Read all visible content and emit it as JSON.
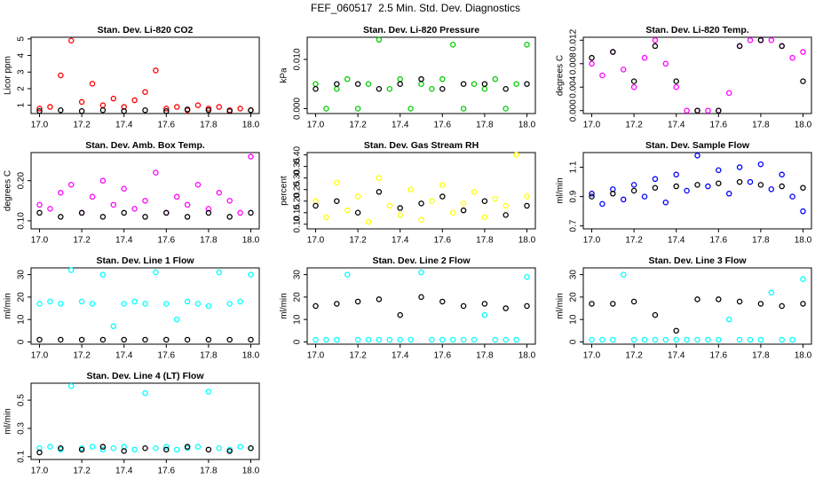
{
  "title": "FEF_060517  2.5 Min. Std. Dev. Diagnostics",
  "chart_data": [
    {
      "type": "scatter",
      "title": "Stan. Dev. Li-820 CO2",
      "y_label": "Licor ppm",
      "xlim": [
        16.96,
        18.04
      ],
      "ylim": [
        0.5,
        5.1
      ],
      "xticks": [
        {
          "value": 17,
          "label": "17.0"
        },
        17.2,
        17.4,
        17.6,
        17.8,
        {
          "value": 18,
          "label": "18.0"
        }
      ],
      "yticks": [
        1,
        2,
        3,
        4,
        5
      ],
      "series": [
        {
          "color": "#ff0000",
          "x": [
            17.0,
            17.05,
            17.1,
            17.15,
            17.2,
            17.25,
            17.3,
            17.35,
            17.4,
            17.45,
            17.5,
            17.55,
            17.6,
            17.65,
            17.7,
            17.75,
            17.8,
            17.85,
            17.9,
            17.95,
            18.0
          ],
          "values": [
            0.8,
            0.9,
            2.8,
            4.9,
            1.2,
            2.3,
            1.0,
            1.4,
            0.9,
            1.3,
            1.8,
            3.1,
            0.8,
            0.9,
            0.7,
            1.0,
            0.8,
            0.9,
            0.7,
            0.8,
            0.7
          ]
        },
        {
          "color": "#000000",
          "x": [
            17.0,
            17.1,
            17.2,
            17.3,
            17.4,
            17.5,
            17.6,
            17.7,
            17.8,
            17.9,
            18.0
          ],
          "values": [
            0.65,
            0.7,
            0.65,
            0.7,
            0.65,
            0.7,
            0.65,
            0.75,
            0.7,
            0.65,
            0.7
          ]
        }
      ]
    },
    {
      "type": "scatter",
      "title": "Stan. Dev. Li-820 Pressure",
      "y_label": "kPa",
      "xlim": [
        16.96,
        18.04
      ],
      "ylim": [
        -0.001,
        0.0145
      ],
      "xticks": [
        {
          "value": 17,
          "label": "17.0"
        },
        17.2,
        17.4,
        17.6,
        17.8,
        {
          "value": 18,
          "label": "18.0"
        }
      ],
      "yticks": [
        {
          "value": 0,
          "label": "0.000"
        },
        {
          "value": 0.01,
          "label": "0.010"
        }
      ],
      "series": [
        {
          "color": "#00cc00",
          "x": [
            17.0,
            17.05,
            17.1,
            17.15,
            17.2,
            17.25,
            17.3,
            17.35,
            17.4,
            17.45,
            17.5,
            17.55,
            17.6,
            17.65,
            17.7,
            17.75,
            17.8,
            17.85,
            17.9,
            17.95,
            18.0
          ],
          "values": [
            0.005,
            0.0,
            0.004,
            0.006,
            0.0,
            0.005,
            0.014,
            0.004,
            0.006,
            0.0,
            0.005,
            0.004,
            0.006,
            0.013,
            0.0,
            0.005,
            0.004,
            0.006,
            0.0,
            0.005,
            0.013
          ]
        },
        {
          "color": "#000000",
          "x": [
            17.0,
            17.1,
            17.2,
            17.3,
            17.4,
            17.5,
            17.6,
            17.7,
            17.8,
            17.9,
            18.0
          ],
          "values": [
            0.004,
            0.005,
            0.005,
            0.004,
            0.005,
            0.006,
            0.004,
            0.005,
            0.005,
            0.004,
            0.005
          ]
        }
      ]
    },
    {
      "type": "scatter",
      "title": "Stan. Dev. Li-820 Temp.",
      "y_label": "degrees C",
      "xlim": [
        16.96,
        18.04
      ],
      "ylim": [
        -0.0005,
        0.0125
      ],
      "xticks": [
        {
          "value": 17,
          "label": "17.0"
        },
        17.2,
        17.4,
        17.6,
        17.8,
        {
          "value": 18,
          "label": "18.0"
        }
      ],
      "yticks": [
        {
          "value": 0,
          "label": "0.000"
        },
        0.004,
        0.008,
        0.012
      ],
      "series": [
        {
          "color": "#ff00ff",
          "x": [
            17.0,
            17.05,
            17.1,
            17.15,
            17.2,
            17.25,
            17.3,
            17.35,
            17.4,
            17.45,
            17.5,
            17.55,
            17.6,
            17.65,
            17.7,
            17.75,
            17.8,
            17.85,
            17.9,
            17.95,
            18.0
          ],
          "values": [
            0.008,
            0.006,
            0.01,
            0.007,
            0.004,
            0.009,
            0.012,
            0.008,
            0.004,
            0.0,
            0.0,
            0.0,
            0.0,
            0.003,
            0.011,
            0.012,
            0.012,
            0.012,
            0.011,
            0.009,
            0.01
          ]
        },
        {
          "color": "#000000",
          "x": [
            17.0,
            17.1,
            17.2,
            17.3,
            17.4,
            17.5,
            17.6,
            17.7,
            17.8,
            17.9,
            18.0
          ],
          "values": [
            0.009,
            0.01,
            0.005,
            0.011,
            0.005,
            0.0,
            0.0,
            0.011,
            0.012,
            0.011,
            0.005
          ]
        }
      ]
    },
    {
      "type": "scatter",
      "title": "Stan. Dev. Amb. Box Temp.",
      "y_label": "degrees C",
      "xlim": [
        16.96,
        18.04
      ],
      "ylim": [
        0.08,
        0.27
      ],
      "xticks": [
        {
          "value": 17,
          "label": "17.0"
        },
        17.2,
        17.4,
        17.6,
        17.8,
        {
          "value": 18,
          "label": "18.0"
        }
      ],
      "yticks": [
        {
          "value": 0.1,
          "label": "0.10"
        },
        {
          "value": 0.2,
          "label": "0.20"
        }
      ],
      "series": [
        {
          "color": "#ff00ff",
          "x": [
            17.0,
            17.05,
            17.1,
            17.15,
            17.2,
            17.25,
            17.3,
            17.35,
            17.4,
            17.45,
            17.5,
            17.55,
            17.6,
            17.65,
            17.7,
            17.75,
            17.8,
            17.85,
            17.9,
            17.95,
            18.0
          ],
          "values": [
            0.14,
            0.13,
            0.17,
            0.19,
            0.12,
            0.16,
            0.2,
            0.14,
            0.18,
            0.13,
            0.15,
            0.22,
            0.12,
            0.16,
            0.14,
            0.19,
            0.13,
            0.17,
            0.15,
            0.12,
            0.26
          ]
        },
        {
          "color": "#000000",
          "x": [
            17.0,
            17.1,
            17.2,
            17.3,
            17.4,
            17.5,
            17.6,
            17.7,
            17.8,
            17.9,
            18.0
          ],
          "values": [
            0.12,
            0.11,
            0.12,
            0.11,
            0.12,
            0.11,
            0.12,
            0.11,
            0.12,
            0.11,
            0.12
          ]
        }
      ]
    },
    {
      "type": "scatter",
      "title": "Stan. Dev. Gas Stream RH",
      "y_label": "percent",
      "xlim": [
        16.96,
        18.04
      ],
      "ylim": [
        0.08,
        0.41
      ],
      "xticks": [
        {
          "value": 17,
          "label": "17.0"
        },
        17.2,
        17.4,
        17.6,
        17.8,
        {
          "value": 18,
          "label": "18.0"
        }
      ],
      "yticks": [
        {
          "value": 0.1,
          "label": "0.10"
        },
        0.15,
        {
          "value": 0.2,
          "label": "0.20"
        },
        0.25,
        {
          "value": 0.3,
          "label": "0.30"
        },
        0.35,
        {
          "value": 0.4,
          "label": "0.40"
        }
      ],
      "series": [
        {
          "color": "#ffff00",
          "x": [
            17.0,
            17.05,
            17.1,
            17.15,
            17.2,
            17.25,
            17.3,
            17.35,
            17.4,
            17.45,
            17.5,
            17.55,
            17.6,
            17.65,
            17.7,
            17.75,
            17.8,
            17.85,
            17.9,
            17.95,
            18.0
          ],
          "values": [
            0.2,
            0.13,
            0.28,
            0.16,
            0.22,
            0.11,
            0.3,
            0.18,
            0.14,
            0.25,
            0.12,
            0.2,
            0.27,
            0.15,
            0.19,
            0.24,
            0.13,
            0.21,
            0.18,
            0.4,
            0.22
          ]
        },
        {
          "color": "#000000",
          "x": [
            17.0,
            17.1,
            17.2,
            17.3,
            17.4,
            17.5,
            17.6,
            17.7,
            17.8,
            17.9,
            18.0
          ],
          "values": [
            0.18,
            0.2,
            0.15,
            0.24,
            0.17,
            0.19,
            0.22,
            0.16,
            0.2,
            0.14,
            0.18
          ]
        }
      ]
    },
    {
      "type": "scatter",
      "title": "Stan. Dev. Sample Flow",
      "y_label": "ml/min",
      "xlim": [
        16.96,
        18.04
      ],
      "ylim": [
        0.68,
        1.2
      ],
      "xticks": [
        {
          "value": 17,
          "label": "17.0"
        },
        17.2,
        17.4,
        17.6,
        17.8,
        {
          "value": 18,
          "label": "18.0"
        }
      ],
      "yticks": [
        0.7,
        0.9,
        1.1
      ],
      "series": [
        {
          "color": "#0000ff",
          "x": [
            17.0,
            17.05,
            17.1,
            17.15,
            17.2,
            17.25,
            17.3,
            17.35,
            17.4,
            17.45,
            17.5,
            17.55,
            17.6,
            17.65,
            17.7,
            17.75,
            17.8,
            17.85,
            17.9,
            17.95,
            18.0
          ],
          "values": [
            0.92,
            0.85,
            0.95,
            0.88,
            0.98,
            0.9,
            1.02,
            0.86,
            1.05,
            0.94,
            1.18,
            0.97,
            1.08,
            0.92,
            1.1,
            1.0,
            1.12,
            0.95,
            1.05,
            0.9,
            0.8
          ]
        },
        {
          "color": "#000000",
          "x": [
            17.0,
            17.1,
            17.2,
            17.3,
            17.4,
            17.5,
            17.6,
            17.7,
            17.8,
            17.9,
            18.0
          ],
          "values": [
            0.9,
            0.92,
            0.94,
            0.96,
            0.97,
            0.98,
            0.99,
            1.0,
            0.98,
            0.97,
            0.96
          ]
        }
      ]
    },
    {
      "type": "scatter",
      "title": "Stan. Dev. Line 1 Flow",
      "y_label": "ml/min",
      "xlim": [
        16.96,
        18.04
      ],
      "ylim": [
        -1,
        33
      ],
      "xticks": [
        {
          "value": 17,
          "label": "17.0"
        },
        17.2,
        17.4,
        17.6,
        17.8,
        {
          "value": 18,
          "label": "18.0"
        }
      ],
      "yticks": [
        0,
        10,
        20,
        30
      ],
      "series": [
        {
          "color": "#00ffff",
          "x": [
            17.0,
            17.05,
            17.1,
            17.15,
            17.2,
            17.25,
            17.3,
            17.35,
            17.4,
            17.45,
            17.5,
            17.55,
            17.6,
            17.65,
            17.7,
            17.75,
            17.8,
            17.85,
            17.9,
            17.95,
            18.0
          ],
          "values": [
            17,
            18,
            17,
            32,
            18,
            17,
            30,
            7,
            17,
            18,
            17,
            31,
            17,
            10,
            18,
            17,
            16,
            31,
            17,
            18,
            30
          ]
        },
        {
          "color": "#000000",
          "x": [
            17.0,
            17.1,
            17.2,
            17.3,
            17.4,
            17.5,
            17.6,
            17.7,
            17.8,
            17.9,
            18.0
          ],
          "values": [
            1,
            1,
            1,
            1,
            1,
            1,
            1,
            1,
            1,
            1,
            1
          ]
        }
      ]
    },
    {
      "type": "scatter",
      "title": "Stan. Dev. Line 2 Flow",
      "y_label": "ml/min",
      "xlim": [
        16.96,
        18.04
      ],
      "ylim": [
        -1,
        33
      ],
      "xticks": [
        {
          "value": 17,
          "label": "17.0"
        },
        17.2,
        17.4,
        17.6,
        17.8,
        {
          "value": 18,
          "label": "18.0"
        }
      ],
      "yticks": [
        0,
        10,
        20,
        30
      ],
      "series": [
        {
          "color": "#00ffff",
          "x": [
            17.0,
            17.05,
            17.1,
            17.15,
            17.2,
            17.25,
            17.3,
            17.35,
            17.4,
            17.45,
            17.5,
            17.55,
            17.6,
            17.65,
            17.7,
            17.75,
            17.8,
            17.85,
            17.9,
            17.95,
            18.0
          ],
          "values": [
            1,
            1,
            1,
            30,
            1,
            1,
            1,
            1,
            1,
            1,
            31,
            1,
            1,
            1,
            1,
            1,
            12,
            1,
            1,
            1,
            29
          ]
        },
        {
          "color": "#000000",
          "x": [
            17.0,
            17.1,
            17.2,
            17.3,
            17.4,
            17.5,
            17.6,
            17.7,
            17.8,
            17.9,
            18.0
          ],
          "values": [
            16,
            17,
            18,
            19,
            12,
            20,
            18,
            16,
            17,
            15,
            16
          ]
        }
      ]
    },
    {
      "type": "scatter",
      "title": "Stan. Dev. Line 3 Flow",
      "y_label": "ml/min",
      "xlim": [
        16.96,
        18.04
      ],
      "ylim": [
        -1,
        33
      ],
      "xticks": [
        {
          "value": 17,
          "label": "17.0"
        },
        17.2,
        17.4,
        17.6,
        17.8,
        {
          "value": 18,
          "label": "18.0"
        }
      ],
      "yticks": [
        0,
        10,
        20,
        30
      ],
      "series": [
        {
          "color": "#00ffff",
          "x": [
            17.0,
            17.05,
            17.1,
            17.15,
            17.2,
            17.25,
            17.3,
            17.35,
            17.4,
            17.45,
            17.5,
            17.55,
            17.6,
            17.65,
            17.7,
            17.75,
            17.8,
            17.85,
            17.9,
            17.95,
            18.0
          ],
          "values": [
            1,
            1,
            1,
            30,
            1,
            1,
            1,
            1,
            1,
            1,
            1,
            1,
            1,
            10,
            1,
            1,
            1,
            22,
            1,
            1,
            28
          ]
        },
        {
          "color": "#000000",
          "x": [
            17.0,
            17.1,
            17.2,
            17.3,
            17.4,
            17.5,
            17.6,
            17.7,
            17.8,
            17.9,
            18.0
          ],
          "values": [
            17,
            17,
            18,
            12,
            5,
            19,
            19,
            18,
            17,
            16,
            17
          ]
        }
      ]
    },
    {
      "type": "scatter",
      "title": "Stan. Dev. Line 4 (LT) Flow",
      "y_label": "ml/min",
      "xlim": [
        16.96,
        18.04
      ],
      "ylim": [
        0.08,
        0.62
      ],
      "xticks": [
        {
          "value": 17,
          "label": "17.0"
        },
        17.2,
        17.4,
        17.6,
        17.8,
        {
          "value": 18,
          "label": "18.0"
        }
      ],
      "yticks": [
        0.1,
        0.3,
        0.5
      ],
      "series": [
        {
          "color": "#00ffff",
          "x": [
            17.0,
            17.05,
            17.1,
            17.15,
            17.2,
            17.25,
            17.3,
            17.35,
            17.4,
            17.45,
            17.5,
            17.55,
            17.6,
            17.65,
            17.7,
            17.75,
            17.8,
            17.85,
            17.9,
            17.95,
            18.0
          ],
          "values": [
            0.16,
            0.17,
            0.15,
            0.6,
            0.16,
            0.17,
            0.15,
            0.16,
            0.17,
            0.15,
            0.55,
            0.16,
            0.17,
            0.15,
            0.16,
            0.17,
            0.56,
            0.16,
            0.15,
            0.17,
            0.16
          ]
        },
        {
          "color": "#000000",
          "x": [
            17.0,
            17.1,
            17.2,
            17.3,
            17.4,
            17.5,
            17.6,
            17.7,
            17.8,
            17.9,
            18.0
          ],
          "values": [
            0.13,
            0.16,
            0.15,
            0.17,
            0.14,
            0.16,
            0.15,
            0.17,
            0.15,
            0.14,
            0.16
          ]
        }
      ]
    }
  ]
}
